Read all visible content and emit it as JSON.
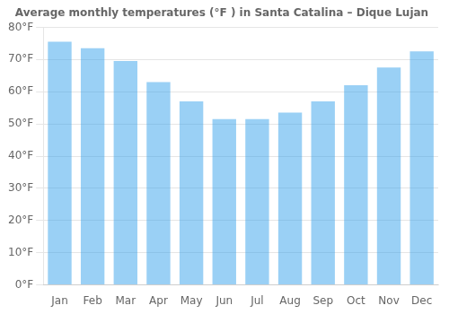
{
  "chart_data": {
    "type": "bar",
    "title": "Average monthly temperatures (°F ) in Santa Catalina – Dique Lujan",
    "categories": [
      "Jan",
      "Feb",
      "Mar",
      "Apr",
      "May",
      "Jun",
      "Jul",
      "Aug",
      "Sep",
      "Oct",
      "Nov",
      "Dec"
    ],
    "values": [
      75.5,
      73.5,
      69.5,
      63.0,
      57.0,
      51.5,
      51.5,
      53.5,
      57.0,
      62.0,
      67.5,
      72.5
    ],
    "ylim": [
      0,
      80
    ],
    "yticks": [
      {
        "value": 0,
        "label": "0°F"
      },
      {
        "value": 10,
        "label": "10°F"
      },
      {
        "value": 20,
        "label": "20°F"
      },
      {
        "value": 30,
        "label": "30°F"
      },
      {
        "value": 40,
        "label": "40°F"
      },
      {
        "value": 50,
        "label": "50°F"
      },
      {
        "value": 60,
        "label": "60°F"
      },
      {
        "value": 70,
        "label": "70°F"
      },
      {
        "value": 80,
        "label": "80°F"
      }
    ],
    "grid": true
  }
}
